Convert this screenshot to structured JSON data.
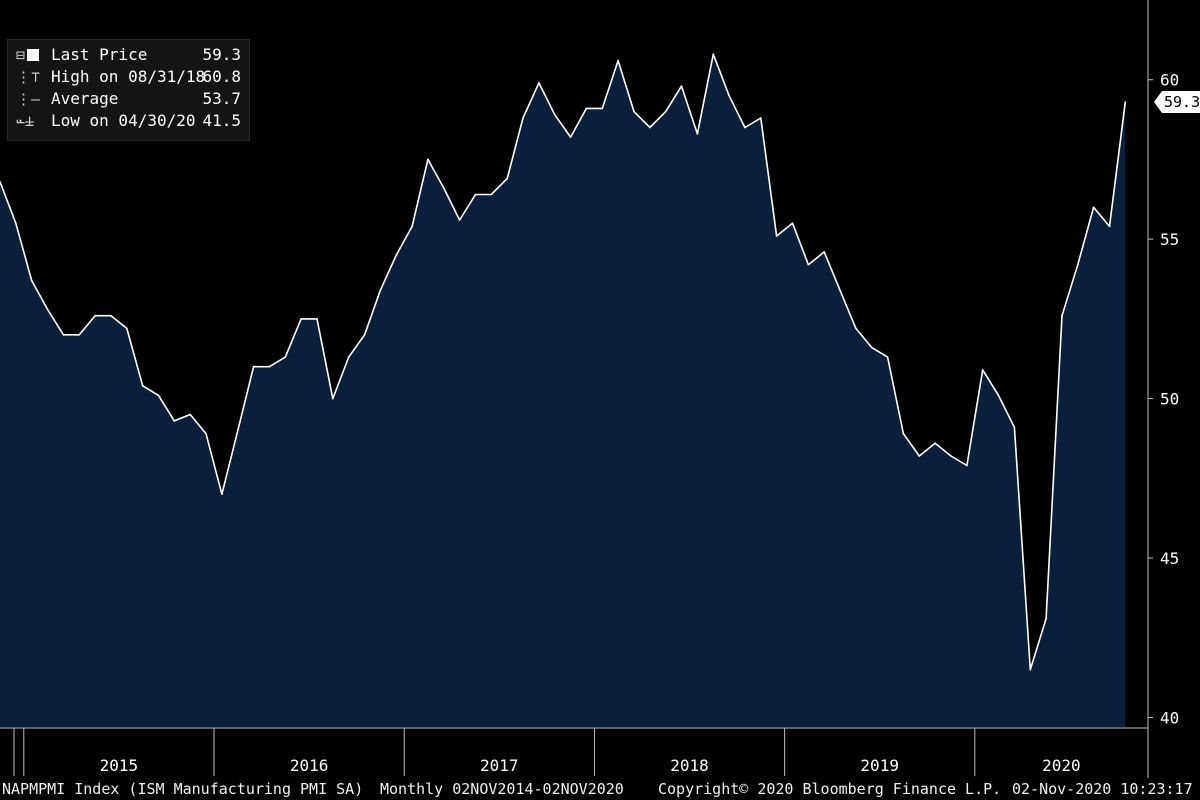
{
  "legend": {
    "last_price_label": "Last Price",
    "last_price_value": "59.3",
    "high_label": "High on 08/31/18",
    "high_value": "60.8",
    "average_label": "Average",
    "average_value": "53.7",
    "low_label": "Low on 04/30/20",
    "low_value": "41.5"
  },
  "last_value_tag": "59.3",
  "footer": {
    "ticker": "NAPMPMI Index (ISM Manufacturing PMI SA)",
    "range": "Monthly 02NOV2014-02NOV2020",
    "copyright": "Copyright© 2020 Bloomberg Finance L.P.",
    "timestamp": "02-Nov-2020 10:23:17"
  },
  "colors": {
    "background": "#000000",
    "area_fill": "#0a1f3c",
    "line": "#ffffff",
    "text": "#ffffff"
  },
  "chart_data": {
    "type": "area",
    "ylim": [
      39.7,
      62.5
    ],
    "yticks": [
      40,
      45,
      50,
      55,
      60
    ],
    "xlim": [
      "2014-11",
      "2020-10"
    ],
    "year_labels": [
      "2015",
      "2016",
      "2017",
      "2018",
      "2019",
      "2020"
    ],
    "series": [
      {
        "x": [
          "2014-11",
          "2014-12",
          "2015-01",
          "2015-02",
          "2015-03",
          "2015-04",
          "2015-05",
          "2015-06",
          "2015-07",
          "2015-08",
          "2015-09",
          "2015-10",
          "2015-11",
          "2015-12",
          "2016-01",
          "2016-02",
          "2016-03",
          "2016-04",
          "2016-05",
          "2016-06",
          "2016-07",
          "2016-08",
          "2016-09",
          "2016-10",
          "2016-11",
          "2016-12",
          "2017-01",
          "2017-02",
          "2017-03",
          "2017-04",
          "2017-05",
          "2017-06",
          "2017-07",
          "2017-08",
          "2017-09",
          "2017-10",
          "2017-11",
          "2017-12",
          "2018-01",
          "2018-02",
          "2018-03",
          "2018-04",
          "2018-05",
          "2018-06",
          "2018-07",
          "2018-08",
          "2018-09",
          "2018-10",
          "2018-11",
          "2018-12",
          "2019-01",
          "2019-02",
          "2019-03",
          "2019-04",
          "2019-05",
          "2019-06",
          "2019-07",
          "2019-08",
          "2019-09",
          "2019-10",
          "2019-11",
          "2019-12",
          "2020-01",
          "2020-02",
          "2020-03",
          "2020-04",
          "2020-05",
          "2020-06",
          "2020-07",
          "2020-08",
          "2020-09",
          "2020-10"
        ],
        "values": [
          56.8,
          55.5,
          53.7,
          52.8,
          52.0,
          52.0,
          52.6,
          52.6,
          52.2,
          50.4,
          50.1,
          49.3,
          49.5,
          48.9,
          47.0,
          49.0,
          51.0,
          51.0,
          51.3,
          52.5,
          52.5,
          50.0,
          51.3,
          52.0,
          53.4,
          54.5,
          55.4,
          57.5,
          56.6,
          55.6,
          56.4,
          56.4,
          56.9,
          58.8,
          59.9,
          58.9,
          58.2,
          59.1,
          59.1,
          60.6,
          59.0,
          58.5,
          59.0,
          59.8,
          58.3,
          60.8,
          59.5,
          58.5,
          58.8,
          55.1,
          55.5,
          54.2,
          54.6,
          53.4,
          52.2,
          51.6,
          51.3,
          48.9,
          48.2,
          48.6,
          48.2,
          47.9,
          50.9,
          50.1,
          49.1,
          41.5,
          43.1,
          52.6,
          54.2,
          56.0,
          55.4,
          59.3
        ]
      }
    ]
  }
}
